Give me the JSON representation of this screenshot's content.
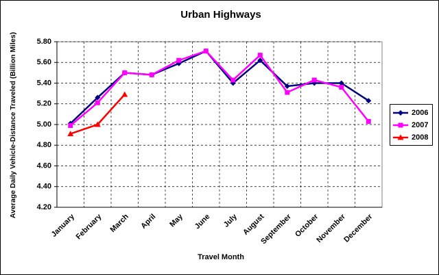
{
  "chart_data": {
    "type": "line",
    "title": "Urban Highways",
    "x_label": "Travel Month",
    "y_label": "Average Daily Vehicle-Distance Traveled (Billion Miles)",
    "categories": [
      "January",
      "February",
      "March",
      "April",
      "May",
      "June",
      "July",
      "August",
      "September",
      "October",
      "November",
      "December"
    ],
    "series": [
      {
        "name": "2006",
        "color": "#000080",
        "marker": "diamond",
        "values": [
          5.01,
          5.26,
          5.5,
          5.48,
          5.59,
          5.71,
          5.4,
          5.62,
          5.37,
          5.4,
          5.4,
          5.23
        ]
      },
      {
        "name": "2007",
        "color": "#ff00ff",
        "marker": "square",
        "values": [
          4.99,
          5.21,
          5.5,
          5.48,
          5.62,
          5.71,
          5.43,
          5.67,
          5.31,
          5.43,
          5.36,
          5.03
        ]
      },
      {
        "name": "2008",
        "color": "#ff0000",
        "marker": "triangle",
        "values": [
          4.91,
          5.0,
          5.29,
          null,
          null,
          null,
          null,
          null,
          null,
          null,
          null,
          null
        ]
      }
    ],
    "ylim": [
      4.2,
      5.8
    ],
    "yticks": [
      {
        "value": 4.2,
        "label": "4.20"
      },
      {
        "value": 4.4,
        "label": "4.40"
      },
      {
        "value": 4.6,
        "label": "4.60"
      },
      {
        "value": 4.8,
        "label": "4.80"
      },
      {
        "value": 5.0,
        "label": "5.00"
      },
      {
        "value": 5.2,
        "label": "5.20"
      },
      {
        "value": 5.4,
        "label": "5.40"
      },
      {
        "value": 5.6,
        "label": "5.60"
      },
      {
        "value": 5.8,
        "label": "5.80"
      }
    ],
    "grid": true,
    "legend": "right"
  }
}
